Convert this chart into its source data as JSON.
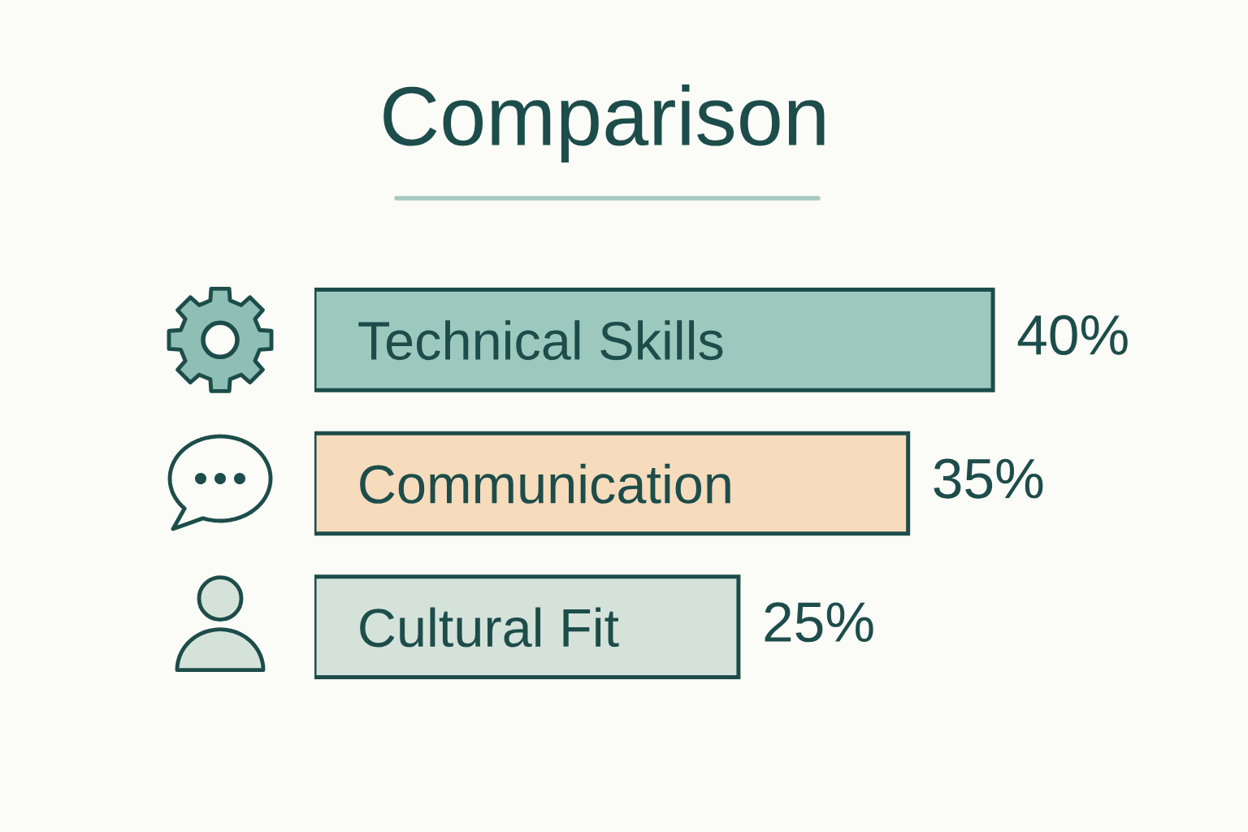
{
  "chart_data": {
    "type": "bar",
    "orientation": "horizontal",
    "title": "Comparison",
    "categories": [
      "Technical Skills",
      "Communication",
      "Cultural Fit"
    ],
    "values": [
      40,
      35,
      25
    ],
    "colors": [
      "#9dc8bd",
      "#f6dcbc",
      "#d5e2da"
    ],
    "value_labels": [
      "40%",
      "35%",
      "25%"
    ]
  }
}
